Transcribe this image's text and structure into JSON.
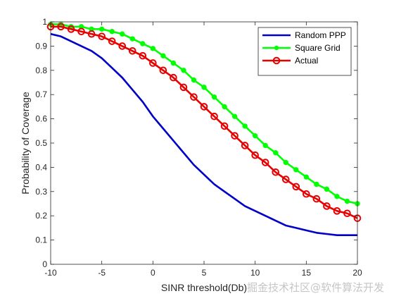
{
  "chart_data": {
    "type": "line",
    "title": "",
    "xlabel": "SINR threshold(Db)",
    "ylabel": "Probability of Coverage",
    "xlim": [
      -10,
      20
    ],
    "ylim": [
      0,
      1
    ],
    "x_ticks": [
      "-10",
      "-5",
      "0",
      "5",
      "10",
      "15",
      "20"
    ],
    "y_ticks": [
      "0",
      "0.1",
      "0.2",
      "0.3",
      "0.4",
      "0.5",
      "0.6",
      "0.7",
      "0.8",
      "0.9",
      "1"
    ],
    "grid": false,
    "legend_position": "top-right",
    "x": [
      -10,
      -9,
      -8,
      -7,
      -6,
      -5,
      -4,
      -3,
      -2,
      -1,
      0,
      1,
      2,
      3,
      4,
      5,
      6,
      7,
      8,
      9,
      10,
      11,
      12,
      13,
      14,
      15,
      16,
      17,
      18,
      19,
      20
    ],
    "series": [
      {
        "name": "Random PPP",
        "color": "#0000c8",
        "marker": "none",
        "values": [
          0.95,
          0.94,
          0.92,
          0.9,
          0.88,
          0.85,
          0.81,
          0.77,
          0.72,
          0.67,
          0.61,
          0.56,
          0.51,
          0.46,
          0.41,
          0.37,
          0.33,
          0.3,
          0.27,
          0.24,
          0.22,
          0.2,
          0.18,
          0.16,
          0.15,
          0.14,
          0.13,
          0.125,
          0.12,
          0.12,
          0.12
        ]
      },
      {
        "name": "Square Grid",
        "color": "#00ff00",
        "marker": "dot",
        "values": [
          0.99,
          0.99,
          0.98,
          0.98,
          0.97,
          0.97,
          0.96,
          0.95,
          0.93,
          0.91,
          0.89,
          0.86,
          0.83,
          0.8,
          0.76,
          0.73,
          0.69,
          0.65,
          0.61,
          0.57,
          0.53,
          0.49,
          0.46,
          0.42,
          0.39,
          0.36,
          0.33,
          0.31,
          0.28,
          0.26,
          0.25
        ]
      },
      {
        "name": "Actual",
        "color": "#e60000",
        "marker": "circle",
        "values": [
          0.98,
          0.98,
          0.97,
          0.96,
          0.95,
          0.94,
          0.92,
          0.9,
          0.88,
          0.86,
          0.83,
          0.8,
          0.77,
          0.73,
          0.69,
          0.65,
          0.61,
          0.57,
          0.53,
          0.49,
          0.45,
          0.42,
          0.38,
          0.35,
          0.32,
          0.29,
          0.27,
          0.24,
          0.22,
          0.21,
          0.19
        ]
      }
    ]
  },
  "watermark": "掘金技术社区@软件算法开发"
}
